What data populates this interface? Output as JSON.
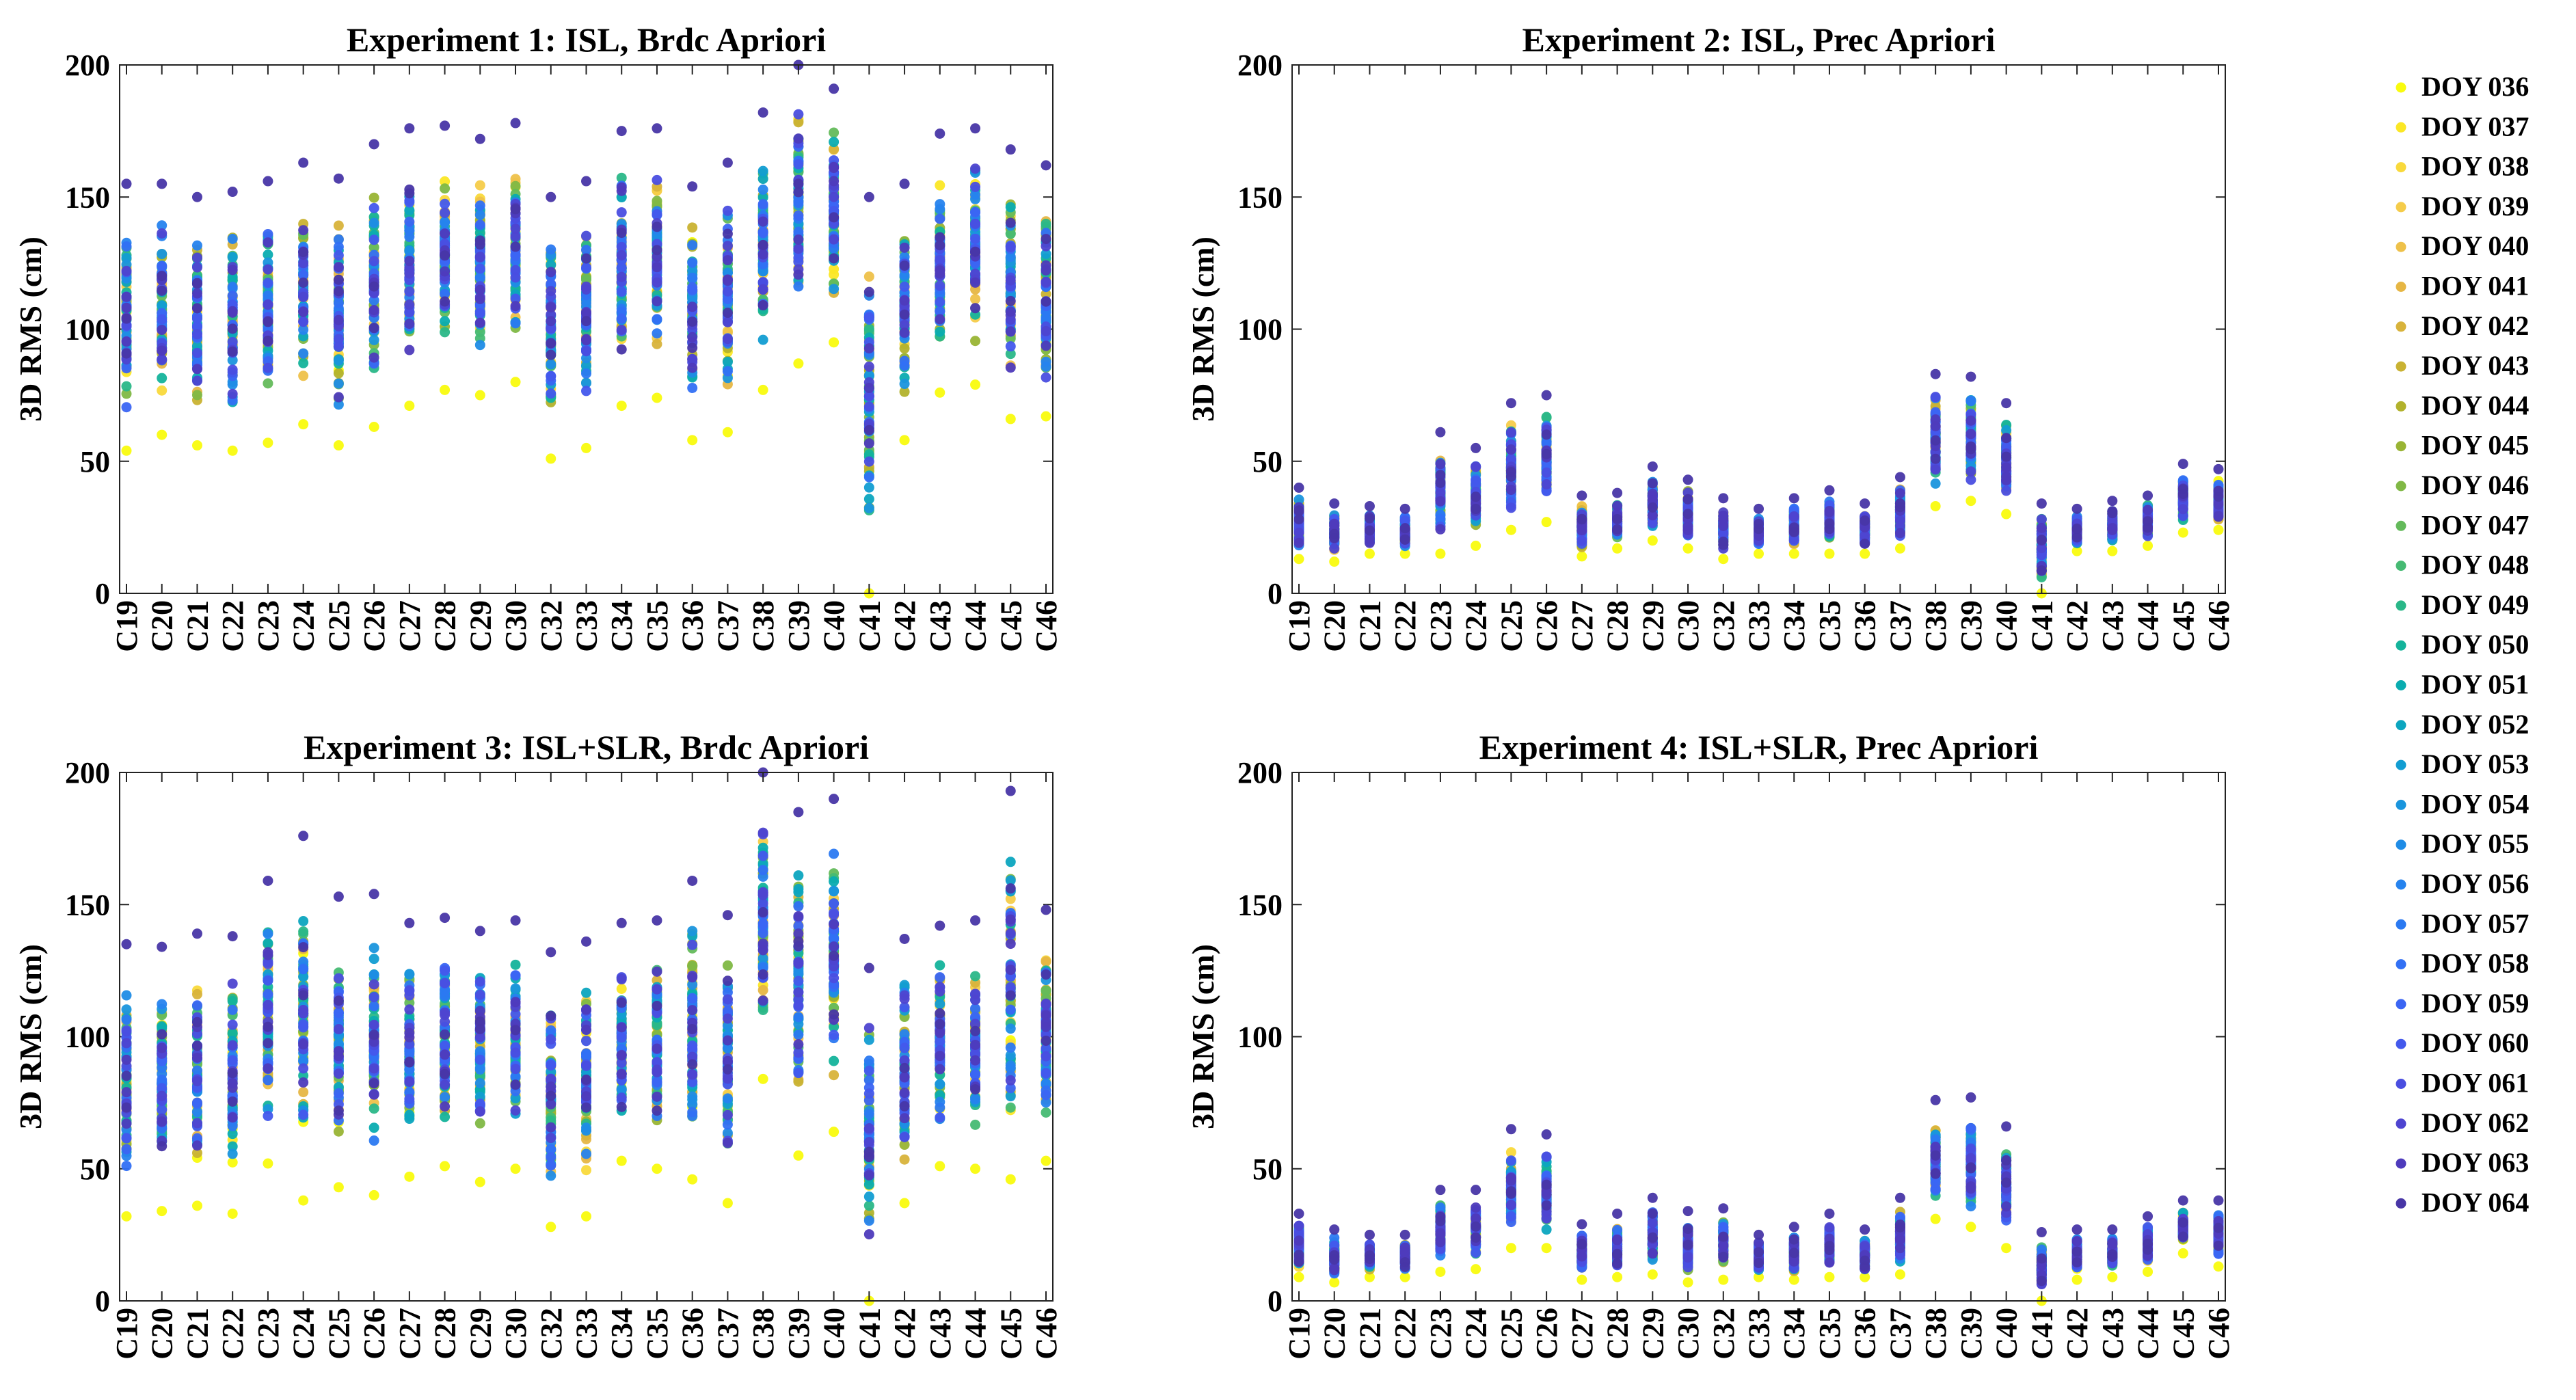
{
  "chart_data": [
    {
      "type": "scatter",
      "title": "Experiment 1: ISL, Brdc Apriori",
      "ylabel": "3D RMS (cm)",
      "ylim": [
        0,
        200
      ],
      "yticks": [
        "0",
        "50",
        "100",
        "150",
        "200"
      ],
      "categories": [
        "C19",
        "C20",
        "C21",
        "C22",
        "C23",
        "C24",
        "C25",
        "C26",
        "C27",
        "C28",
        "C29",
        "C30",
        "C32",
        "C33",
        "C34",
        "C35",
        "C36",
        "C37",
        "C38",
        "C39",
        "C40",
        "C41",
        "C42",
        "C43",
        "C44",
        "C45",
        "C46"
      ],
      "range_min": [
        54,
        60,
        56,
        54,
        57,
        64,
        56,
        63,
        71,
        77,
        75,
        80,
        51,
        55,
        71,
        74,
        58,
        61,
        77,
        87,
        95,
        0,
        58,
        76,
        79,
        66,
        67
      ],
      "range_max": [
        155,
        155,
        150,
        152,
        156,
        163,
        157,
        170,
        176,
        177,
        172,
        178,
        150,
        156,
        175,
        176,
        154,
        163,
        182,
        200,
        191,
        150,
        155,
        174,
        176,
        168,
        162
      ]
    },
    {
      "type": "scatter",
      "title": "Experiment 2: ISL, Prec Apriori",
      "ylabel": "3D RMS (cm)",
      "ylim": [
        0,
        200
      ],
      "yticks": [
        "0",
        "50",
        "100",
        "150",
        "200"
      ],
      "categories": [
        "C19",
        "C20",
        "C21",
        "C22",
        "C23",
        "C24",
        "C25",
        "C26",
        "C27",
        "C28",
        "C29",
        "C30",
        "C32",
        "C33",
        "C34",
        "C35",
        "C36",
        "C37",
        "C38",
        "C39",
        "C40",
        "C41",
        "C42",
        "C43",
        "C44",
        "C45",
        "C46"
      ],
      "range_min": [
        13,
        12,
        15,
        15,
        15,
        18,
        24,
        27,
        14,
        17,
        20,
        17,
        13,
        15,
        15,
        15,
        15,
        17,
        33,
        35,
        30,
        0,
        16,
        16,
        18,
        23,
        24
      ],
      "range_max": [
        40,
        34,
        33,
        32,
        61,
        55,
        72,
        75,
        37,
        38,
        48,
        43,
        36,
        32,
        36,
        39,
        34,
        44,
        83,
        82,
        72,
        34,
        32,
        35,
        37,
        49,
        47
      ]
    },
    {
      "type": "scatter",
      "title": "Experiment 3: ISL+SLR, Brdc Apriori",
      "ylabel": "3D RMS (cm)",
      "ylim": [
        0,
        200
      ],
      "yticks": [
        "0",
        "50",
        "100",
        "150",
        "200"
      ],
      "categories": [
        "C19",
        "C20",
        "C21",
        "C22",
        "C23",
        "C24",
        "C25",
        "C26",
        "C27",
        "C28",
        "C29",
        "C30",
        "C32",
        "C33",
        "C34",
        "C35",
        "C36",
        "C37",
        "C38",
        "C39",
        "C40",
        "C41",
        "C42",
        "C43",
        "C44",
        "C45",
        "C46"
      ],
      "range_min": [
        32,
        34,
        36,
        33,
        52,
        38,
        43,
        40,
        47,
        51,
        45,
        50,
        28,
        32,
        53,
        50,
        46,
        37,
        84,
        55,
        64,
        0,
        37,
        51,
        50,
        46,
        53
      ],
      "range_max": [
        135,
        134,
        139,
        138,
        159,
        176,
        153,
        154,
        143,
        145,
        140,
        144,
        132,
        136,
        143,
        144,
        159,
        146,
        200,
        185,
        190,
        126,
        137,
        142,
        144,
        193,
        148
      ]
    },
    {
      "type": "scatter",
      "title": "Experiment 4: ISL+SLR, Prec Apriori",
      "ylabel": "3D RMS (cm)",
      "ylim": [
        0,
        200
      ],
      "yticks": [
        "0",
        "50",
        "100",
        "150",
        "200"
      ],
      "categories": [
        "C19",
        "C20",
        "C21",
        "C22",
        "C23",
        "C24",
        "C25",
        "C26",
        "C27",
        "C28",
        "C29",
        "C30",
        "C32",
        "C33",
        "C34",
        "C35",
        "C36",
        "C37",
        "C38",
        "C39",
        "C40",
        "C41",
        "C42",
        "C43",
        "C44",
        "C45",
        "C46"
      ],
      "range_min": [
        9,
        7,
        9,
        9,
        11,
        12,
        20,
        20,
        8,
        9,
        10,
        7,
        8,
        9,
        8,
        9,
        9,
        10,
        31,
        28,
        20,
        0,
        8,
        9,
        11,
        18,
        13
      ],
      "range_max": [
        33,
        27,
        25,
        25,
        42,
        42,
        65,
        63,
        29,
        33,
        39,
        34,
        35,
        25,
        28,
        33,
        27,
        39,
        76,
        77,
        66,
        26,
        27,
        27,
        32,
        38,
        38
      ]
    }
  ],
  "legend": {
    "entries": [
      "DOY 036",
      "DOY 037",
      "DOY 038",
      "DOY 039",
      "DOY 040",
      "DOY 041",
      "DOY 042",
      "DOY 043",
      "DOY 044",
      "DOY 045",
      "DOY 046",
      "DOY 047",
      "DOY 048",
      "DOY 049",
      "DOY 050",
      "DOY 051",
      "DOY 052",
      "DOY 053",
      "DOY 054",
      "DOY 055",
      "DOY 056",
      "DOY 057",
      "DOY 058",
      "DOY 059",
      "DOY 060",
      "DOY 061",
      "DOY 062",
      "DOY 063",
      "DOY 064"
    ],
    "colors": [
      "#f9fb0e",
      "#fbe725",
      "#f9d93b",
      "#f5cc4a",
      "#eec14a",
      "#e6b644",
      "#d8b33b",
      "#c9b232",
      "#b2b22c",
      "#99b434",
      "#80b845",
      "#64ba5b",
      "#46ba73",
      "#2ab788",
      "#14b39b",
      "#0aacb0",
      "#0ca5bf",
      "#129dd2",
      "#1a95dd",
      "#1f8ce6",
      "#2683ee",
      "#2b79f1",
      "#3270f4",
      "#3b65f3",
      "#4359ec",
      "#4a4ee0",
      "#4e44d0",
      "#4e3bbc",
      "#4836a6"
    ]
  }
}
